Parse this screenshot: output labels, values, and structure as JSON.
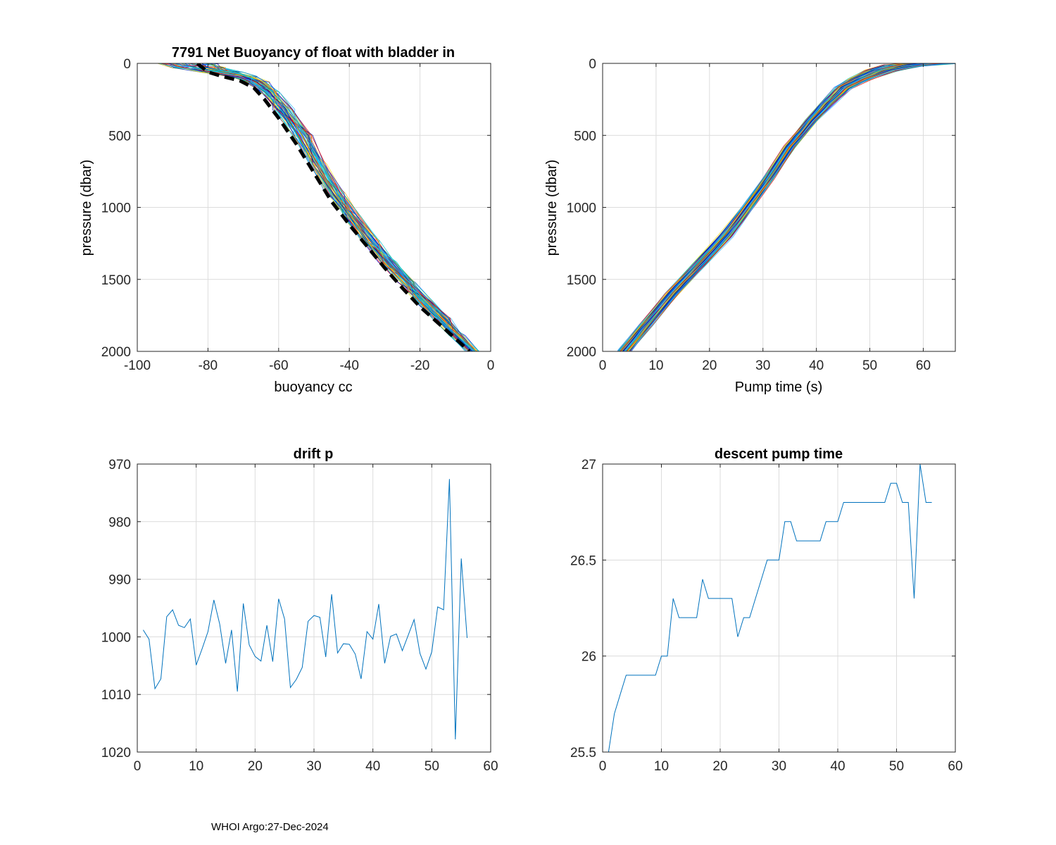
{
  "footer": "WHOI Argo:27-Dec-2024",
  "colors": {
    "line": "#0072BD",
    "grid": "#dcdcdc",
    "mean": "#000000",
    "profiles": [
      "#FFD700",
      "#FFA500",
      "#FF0000",
      "#00C0C0",
      "#00E0FF",
      "#20B0FF",
      "#0050FF",
      "#0000CD",
      "#000090",
      "#2E8B57"
    ]
  },
  "chart_data": [
    {
      "type": "line",
      "title": "7791 Net Buoyancy of float with bladder in",
      "xlabel": "buoyancy cc",
      "ylabel": "pressure (dbar)",
      "xlim": [
        -100,
        0
      ],
      "ylim": [
        0,
        2000
      ],
      "y_reversed": true,
      "grid": true,
      "xticks": [
        -100,
        -80,
        -60,
        -40,
        -20,
        0
      ],
      "yticks": [
        0,
        500,
        1000,
        1500,
        2000
      ],
      "profile_count": 56,
      "mean_profile": {
        "name": "mean",
        "style": "dashed",
        "x": [
          -83,
          -80,
          -76,
          -71,
          -67,
          -64,
          -60,
          -55,
          -50,
          -45,
          -40,
          -35,
          -30,
          -25,
          -20,
          -15,
          -10,
          -6
        ],
        "y": [
          0,
          60,
          90,
          120,
          170,
          250,
          380,
          560,
          760,
          960,
          1120,
          1270,
          1420,
          1560,
          1690,
          1800,
          1910,
          2000
        ]
      },
      "envelope": {
        "left_x": [
          -98,
          -93,
          -85,
          -76,
          -70,
          -66,
          -62,
          -57,
          -52,
          -47,
          -42,
          -37,
          -32,
          -27,
          -22,
          -17,
          -12,
          -7
        ],
        "right_x": [
          -73,
          -71,
          -68,
          -65,
          -62,
          -59,
          -55,
          -50,
          -46,
          -41,
          -36,
          -31,
          -26,
          -21,
          -16,
          -11,
          -7,
          -3
        ],
        "y": [
          0,
          30,
          60,
          90,
          130,
          200,
          320,
          500,
          700,
          900,
          1070,
          1230,
          1380,
          1520,
          1650,
          1770,
          1890,
          2000
        ]
      }
    },
    {
      "type": "line",
      "title": "",
      "xlabel": "Pump time (s)",
      "ylabel": "pressure (dbar)",
      "xlim": [
        0,
        66
      ],
      "ylim": [
        0,
        2000
      ],
      "y_reversed": true,
      "grid": true,
      "xticks": [
        0,
        10,
        20,
        30,
        40,
        50,
        60
      ],
      "yticks": [
        0,
        500,
        1000,
        1500,
        2000
      ],
      "profile_count": 56,
      "center_profile": {
        "x": [
          4,
          8,
          13,
          18,
          23,
          27.5,
          31,
          35,
          39,
          42,
          45,
          48,
          52,
          56,
          60,
          64
        ],
        "y": [
          2000,
          1820,
          1600,
          1400,
          1200,
          980,
          800,
          580,
          400,
          280,
          170,
          110,
          50,
          15,
          5,
          0
        ]
      },
      "spread": [
        1.2,
        1.2,
        1.2,
        1.2,
        1.2,
        1.0,
        1.0,
        1.0,
        1.0,
        1.2,
        1.5,
        2.0,
        3.0,
        4.0,
        4.0,
        3.0
      ]
    },
    {
      "type": "line",
      "title": "drift p",
      "xlabel": "",
      "ylabel": "",
      "xlim": [
        0,
        60
      ],
      "ylim": [
        970,
        1020
      ],
      "y_reversed": true,
      "grid": true,
      "xticks": [
        0,
        10,
        20,
        30,
        40,
        50,
        60
      ],
      "yticks": [
        970,
        980,
        990,
        1000,
        1010,
        1020
      ],
      "x": [
        1,
        2,
        3,
        4,
        5,
        6,
        7,
        8,
        9,
        10,
        11,
        12,
        13,
        14,
        15,
        16,
        17,
        18,
        19,
        20,
        21,
        22,
        23,
        24,
        25,
        26,
        27,
        28,
        29,
        30,
        31,
        32,
        33,
        34,
        35,
        36,
        37,
        38,
        39,
        40,
        41,
        42,
        43,
        44,
        45,
        46,
        47,
        48,
        49,
        50,
        51,
        52,
        53,
        54,
        55,
        56
      ],
      "values": [
        998.8,
        1000.4,
        1009.0,
        1007.3,
        996.5,
        995.3,
        998.0,
        998.4,
        996.9,
        1004.9,
        1002.1,
        999.1,
        993.6,
        997.8,
        1004.6,
        998.8,
        1009.5,
        994.2,
        1001.4,
        1003.4,
        1004.2,
        998.0,
        1004.3,
        993.4,
        996.9,
        1008.8,
        1007.4,
        1005.3,
        997.3,
        996.3,
        996.6,
        1003.5,
        992.6,
        1002.8,
        1001.2,
        1001.3,
        1003.0,
        1007.3,
        999.1,
        1000.4,
        994.3,
        1004.6,
        999.9,
        999.5,
        1002.4,
        999.7,
        997.0,
        1002.9,
        1005.6,
        1002.6,
        994.8,
        995.3,
        972.6,
        1017.8,
        986.4,
        1000.2
      ]
    },
    {
      "type": "line",
      "title": "descent pump time",
      "xlabel": "",
      "ylabel": "",
      "xlim": [
        0,
        60
      ],
      "ylim": [
        25.5,
        27
      ],
      "y_reversed": false,
      "grid": true,
      "xticks": [
        0,
        10,
        20,
        30,
        40,
        50,
        60
      ],
      "yticks": [
        25.5,
        26,
        26.5,
        27
      ],
      "x": [
        1,
        2,
        3,
        4,
        5,
        6,
        7,
        8,
        9,
        10,
        11,
        12,
        13,
        14,
        15,
        16,
        17,
        18,
        19,
        20,
        21,
        22,
        23,
        24,
        25,
        26,
        27,
        28,
        29,
        30,
        31,
        32,
        33,
        34,
        35,
        36,
        37,
        38,
        39,
        40,
        41,
        42,
        43,
        44,
        45,
        46,
        47,
        48,
        49,
        50,
        51,
        52,
        53,
        54,
        55,
        56
      ],
      "values": [
        25.5,
        25.7,
        25.8,
        25.9,
        25.9,
        25.9,
        25.9,
        25.9,
        25.9,
        26.0,
        26.0,
        26.3,
        26.2,
        26.2,
        26.2,
        26.2,
        26.4,
        26.3,
        26.3,
        26.3,
        26.3,
        26.3,
        26.1,
        26.2,
        26.2,
        26.3,
        26.4,
        26.5,
        26.5,
        26.5,
        26.7,
        26.7,
        26.6,
        26.6,
        26.6,
        26.6,
        26.6,
        26.7,
        26.7,
        26.7,
        26.8,
        26.8,
        26.8,
        26.8,
        26.8,
        26.8,
        26.8,
        26.8,
        26.9,
        26.9,
        26.8,
        26.8,
        26.3,
        27.0,
        26.8,
        26.8
      ]
    }
  ]
}
